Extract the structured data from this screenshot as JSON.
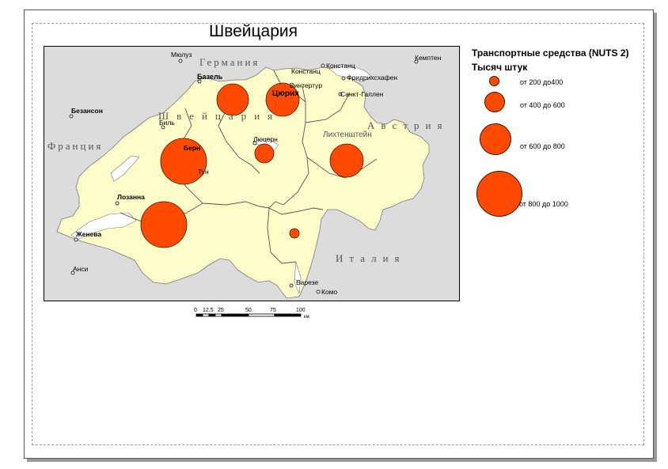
{
  "title": "Швейцария",
  "colors": {
    "land_ch": "#fefcc8",
    "land_other": "#dcdcdc",
    "symbol": "#ff4a00",
    "water": "#ffffff"
  },
  "legend": {
    "title": "Транспортные средства (NUTS 2)",
    "subtitle": "Тысяч штук",
    "classes": [
      "от 200 до400",
      "от 400 до 600",
      "от 600 до 800",
      "от 800 до 1000"
    ]
  },
  "countries": [
    "Германия",
    "Швейцария",
    "Австрия",
    "Франция",
    "Италия"
  ],
  "cities": [
    "Мюлуз",
    "Базель",
    "Констанц",
    "Констанц",
    "Винтертур",
    "Кемптен",
    "Фридрихсхафен",
    "Санкт-Галлен",
    "Цюрих",
    "Безансон",
    "Биль",
    "Люцерн",
    "Лихтенштейн",
    "Берн",
    "Тун",
    "Лозанна",
    "Женева",
    "Анси",
    "Варезе",
    "Комо"
  ],
  "scale": {
    "ticks": [
      "0",
      "12.5",
      "25",
      "50",
      "75",
      "100"
    ],
    "unit": "км"
  }
}
